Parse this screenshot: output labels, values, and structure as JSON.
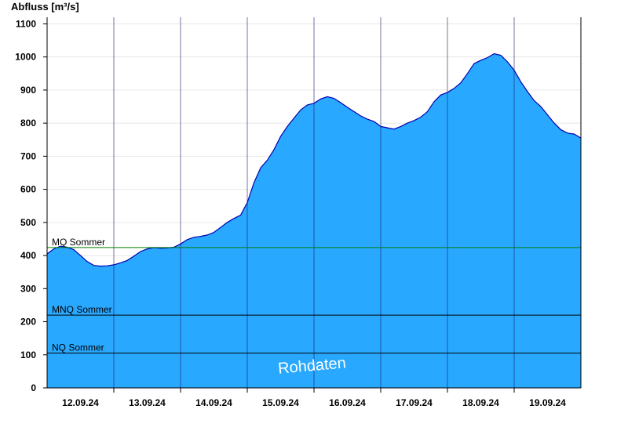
{
  "chart_data": {
    "type": "area",
    "title": "",
    "ylabel": "Abfluss [m³/s]",
    "xlabel": "",
    "xlim": [
      0,
      8
    ],
    "ylim": [
      0,
      1120
    ],
    "y_ticks": [
      0,
      100,
      200,
      300,
      400,
      500,
      600,
      700,
      800,
      900,
      1000,
      1100
    ],
    "x_day_separators": [
      1,
      2,
      3,
      4,
      5,
      6,
      7
    ],
    "x_tick_labels": [
      {
        "x": 0.5,
        "label": "12.09.24"
      },
      {
        "x": 1.5,
        "label": "13.09.24"
      },
      {
        "x": 2.5,
        "label": "14.09.24"
      },
      {
        "x": 3.5,
        "label": "15.09.24"
      },
      {
        "x": 4.5,
        "label": "16.09.24"
      },
      {
        "x": 5.5,
        "label": "17.09.24"
      },
      {
        "x": 6.5,
        "label": "18.09.24"
      },
      {
        "x": 7.5,
        "label": "19.09.24"
      }
    ],
    "grid": true,
    "reference_lines": [
      {
        "name": "MQ Sommer",
        "value": 424,
        "color": "#008000"
      },
      {
        "name": "MNQ Sommer",
        "value": 220,
        "color": "#000000"
      },
      {
        "name": "NQ Sommer",
        "value": 105,
        "color": "#000000"
      }
    ],
    "series": [
      {
        "fill_color": "#29a8ff",
        "line_color": "#0000b0",
        "x": [
          0.0,
          0.1,
          0.2,
          0.3,
          0.4,
          0.5,
          0.6,
          0.7,
          0.8,
          0.9,
          1.0,
          1.1,
          1.2,
          1.3,
          1.4,
          1.5,
          1.6,
          1.7,
          1.8,
          1.9,
          2.0,
          2.1,
          2.2,
          2.3,
          2.4,
          2.5,
          2.6,
          2.7,
          2.8,
          2.9,
          3.0,
          3.1,
          3.2,
          3.3,
          3.4,
          3.5,
          3.6,
          3.7,
          3.8,
          3.9,
          4.0,
          4.1,
          4.2,
          4.3,
          4.4,
          4.5,
          4.6,
          4.7,
          4.8,
          4.9,
          5.0,
          5.1,
          5.2,
          5.3,
          5.4,
          5.5,
          5.6,
          5.7,
          5.8,
          5.9,
          6.0,
          6.1,
          6.2,
          6.3,
          6.4,
          6.5,
          6.6,
          6.7,
          6.8,
          6.9,
          7.0,
          7.1,
          7.2,
          7.3,
          7.4,
          7.5,
          7.6,
          7.7,
          7.8,
          7.9,
          8.0
        ],
        "y": [
          405,
          420,
          428,
          425,
          418,
          400,
          382,
          370,
          368,
          369,
          372,
          378,
          385,
          398,
          412,
          420,
          424,
          422,
          423,
          425,
          435,
          448,
          455,
          458,
          462,
          470,
          485,
          500,
          512,
          522,
          560,
          620,
          665,
          688,
          720,
          760,
          790,
          815,
          840,
          855,
          860,
          873,
          880,
          875,
          862,
          848,
          835,
          822,
          812,
          805,
          790,
          786,
          782,
          790,
          800,
          808,
          818,
          835,
          865,
          885,
          893,
          905,
          922,
          950,
          980,
          990,
          998,
          1010,
          1005,
          985,
          960,
          925,
          895,
          868,
          850,
          825,
          800,
          780,
          770,
          767,
          755
        ]
      }
    ],
    "annotations": [
      "Rohdaten"
    ]
  }
}
